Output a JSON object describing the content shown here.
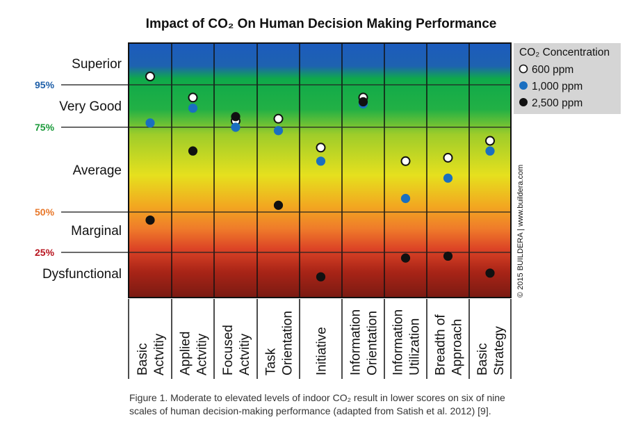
{
  "chart_data": {
    "type": "scatter",
    "title": "Impact of CO₂ On Human Decision Making Performance",
    "categories": [
      [
        "Basic",
        "Actvitiy"
      ],
      [
        "Applied",
        "Actvitiy"
      ],
      [
        "Focused",
        "Actvitiy"
      ],
      [
        "Task",
        "Orientation"
      ],
      [
        "Initiative"
      ],
      [
        "Information",
        "Orientation"
      ],
      [
        "Information",
        "Utilization"
      ],
      [
        "Breadth of",
        "Approach"
      ],
      [
        "Basic",
        "Strategy"
      ]
    ],
    "percentile_ticks": [
      {
        "value": 95,
        "label": "95%",
        "color": "#1e5fa8"
      },
      {
        "value": 75,
        "label": "75%",
        "color": "#1a9a3a"
      },
      {
        "value": 50,
        "label": "50%",
        "color": "#e8782a"
      },
      {
        "value": 25,
        "label": "25%",
        "color": "#b8151f"
      }
    ],
    "bands": [
      {
        "label": "Superior",
        "from": 95,
        "to": 100
      },
      {
        "label": "Very Good",
        "from": 75,
        "to": 95
      },
      {
        "label": "Average",
        "from": 50,
        "to": 75
      },
      {
        "label": "Marginal",
        "from": 25,
        "to": 50
      },
      {
        "label": "Dysfunctional",
        "from": 1,
        "to": 25
      }
    ],
    "ylim": [
      1,
      100
    ],
    "legend_title": "CO₂ Concentration",
    "legend_position": "top-right",
    "series": [
      {
        "name": "600 ppm",
        "color": "#ffffff",
        "values": [
          96,
          89,
          78,
          79,
          69,
          89,
          65,
          66,
          71
        ]
      },
      {
        "name": "1,000 ppm",
        "color": "#1a6fc0",
        "values": [
          77,
          84,
          75,
          74,
          65,
          86,
          54,
          60,
          68
        ]
      },
      {
        "name": "2,500 ppm",
        "color": "#111111",
        "values": [
          45,
          68,
          80,
          52,
          12,
          87,
          22,
          23,
          14
        ]
      }
    ]
  },
  "credit": "© 2015 BUILDERA | www.buildera.com",
  "caption": [
    "Figure 1. Moderate to elevated levels of indoor CO₂ result in lower scores on six of nine",
    "scales of human decision-making performance (adapted from Satish et al. 2012) [9]."
  ]
}
